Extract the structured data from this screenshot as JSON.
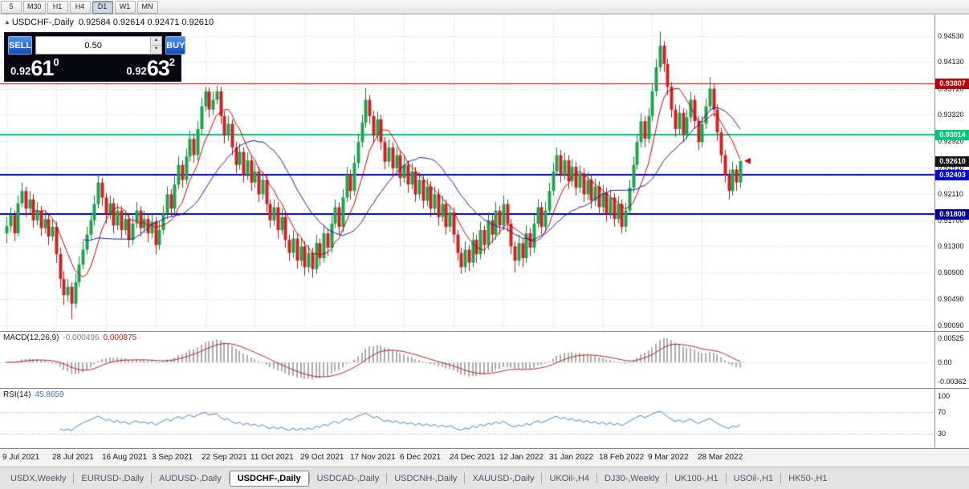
{
  "toolbar": {
    "timeframes": [
      {
        "label": "5",
        "active": false
      },
      {
        "label": "M30",
        "active": false
      },
      {
        "label": "H1",
        "active": false
      },
      {
        "label": "H4",
        "active": false
      },
      {
        "label": "D1",
        "active": true
      },
      {
        "label": "W1",
        "active": false
      },
      {
        "label": "MN",
        "active": false
      }
    ]
  },
  "symbol_line": {
    "symbol": "USDCHF-,Daily",
    "ohlc": "0.92584 0.92614 0.92471 0.92610"
  },
  "trade_panel": {
    "sell_label": "SELL",
    "buy_label": "BUY",
    "volume": "0.50",
    "sell_price": {
      "prefix": "0.92",
      "big": "61",
      "sup": "0"
    },
    "buy_price": {
      "prefix": "0.92",
      "big": "63",
      "sup": "2"
    }
  },
  "price_axis": {
    "ticks": [
      "0.94530",
      "0.94130",
      "0.93720",
      "0.93320",
      "0.92920",
      "0.92510",
      "0.92110",
      "0.91700",
      "0.91300",
      "0.90900",
      "0.90490",
      "0.90090"
    ]
  },
  "levels": [
    {
      "price": 0.93807,
      "label": "0.93807",
      "color": "#b50000",
      "line_width": 1
    },
    {
      "price": 0.93014,
      "label": "0.93014",
      "color": "#00c87a",
      "line_width": 2
    },
    {
      "price": 0.9261,
      "label": "0.92610",
      "color": "#151515",
      "line_width": 0
    },
    {
      "price": 0.92403,
      "label": "0.92403",
      "color": "#0000dc",
      "line_width": 2
    },
    {
      "price": 0.918,
      "label": "0.91800",
      "color": "#000096",
      "line_width": 2
    }
  ],
  "macd_panel": {
    "label": "MACD(12,26,9)",
    "value_main": "-0.000496",
    "value_signal": "0.000875",
    "axis": [
      "0.00525",
      "0.00",
      "-0.00362"
    ]
  },
  "rsi_panel": {
    "label": "RSI(14)",
    "value": "45.8659",
    "axis_values": [
      100,
      70,
      30
    ],
    "guide_levels": [
      70,
      30
    ]
  },
  "date_axis": {
    "labels": [
      "9 Jul 2021",
      "28 Jul 2021",
      "16 Aug 2021",
      "3 Sep 2021",
      "22 Sep 2021",
      "11 Oct 2021",
      "29 Oct 2021",
      "17 Nov 2021",
      "6 Dec 2021",
      "24 Dec 2021",
      "12 Jan 2022",
      "31 Jan 2022",
      "18 Feb 2022",
      "9 Mar 2022",
      "28 Mar 2022"
    ]
  },
  "tabs": {
    "active": "USDCHF-,Daily",
    "items": [
      "USDX,Weekly",
      "EURUSD-,Daily",
      "AUDUSD-,Daily",
      "USDCHF-,Daily",
      "USDCAD-,Daily",
      "USDCNH-,Daily",
      "XAUUSD-,Daily",
      "UKOil-,H4",
      "DJ30-,Weekly",
      "UK100-,H1",
      "USOil-,H1",
      "HK50-,H1"
    ],
    "separator": "|"
  },
  "chart_data": {
    "type": "candlestick",
    "symbol": "USDCHF-",
    "timeframe": "Daily",
    "current_bar": {
      "open": 0.92584,
      "high": 0.92614,
      "low": 0.92471,
      "close": 0.9261
    },
    "bid": 0.9261,
    "ask": 0.92632,
    "y_range": [
      0.9,
      0.9486
    ],
    "bars_start_x": 8,
    "bar_spacing": 4.76,
    "label_every": 13,
    "colors": {
      "up": "#1fa34d",
      "up_border": "#0c7a35",
      "down": "#cc2222",
      "down_border": "#a51818",
      "ma_fast": "#c00000",
      "ma_slow": "#1a1aa0",
      "grid": "#c9c9c9",
      "macd_hist": "#ababab",
      "macd_signal": "#b22222",
      "rsi_line": "#4080c0"
    },
    "overlays": {
      "ma_fast_period": 8,
      "ma_slow_period": 21
    },
    "indicators": [
      {
        "name": "MACD",
        "params": [
          12,
          26,
          9
        ],
        "values": [
          -0.000496,
          0.000875
        ]
      },
      {
        "name": "RSI",
        "params": [
          14
        ],
        "value": 45.8659
      }
    ],
    "candles": [
      [
        0.915,
        0.9175,
        0.9135,
        0.9161
      ],
      [
        0.9161,
        0.919,
        0.9152,
        0.9178
      ],
      [
        0.9178,
        0.9185,
        0.9138,
        0.915
      ],
      [
        0.915,
        0.9208,
        0.9145,
        0.9196
      ],
      [
        0.9196,
        0.9228,
        0.919,
        0.9215
      ],
      [
        0.9215,
        0.9222,
        0.9175,
        0.9188
      ],
      [
        0.9188,
        0.9215,
        0.918,
        0.9202
      ],
      [
        0.9202,
        0.921,
        0.9158,
        0.917
      ],
      [
        0.917,
        0.9198,
        0.9162,
        0.9185
      ],
      [
        0.9185,
        0.9192,
        0.9146,
        0.9158
      ],
      [
        0.9158,
        0.9184,
        0.915,
        0.9172
      ],
      [
        0.9172,
        0.918,
        0.9132,
        0.9145
      ],
      [
        0.9145,
        0.9172,
        0.9138,
        0.916
      ],
      [
        0.916,
        0.9168,
        0.9105,
        0.9118
      ],
      [
        0.9118,
        0.9128,
        0.9066,
        0.908
      ],
      [
        0.908,
        0.9092,
        0.904,
        0.9055
      ],
      [
        0.9055,
        0.908,
        0.9045,
        0.9068
      ],
      [
        0.9068,
        0.9075,
        0.9018,
        0.9042
      ],
      [
        0.9042,
        0.9088,
        0.9035,
        0.9075
      ],
      [
        0.9075,
        0.9115,
        0.9068,
        0.9102
      ],
      [
        0.9102,
        0.9138,
        0.9095,
        0.9125
      ],
      [
        0.9125,
        0.916,
        0.9118,
        0.9148
      ],
      [
        0.9148,
        0.9182,
        0.914,
        0.917
      ],
      [
        0.917,
        0.9208,
        0.9162,
        0.9195
      ],
      [
        0.9195,
        0.924,
        0.9188,
        0.9228
      ],
      [
        0.9228,
        0.9235,
        0.9192,
        0.9205
      ],
      [
        0.9205,
        0.9212,
        0.9165,
        0.918
      ],
      [
        0.918,
        0.9208,
        0.9172,
        0.9196
      ],
      [
        0.9196,
        0.9204,
        0.915,
        0.9162
      ],
      [
        0.9162,
        0.9196,
        0.9155,
        0.9185
      ],
      [
        0.9185,
        0.9192,
        0.9142,
        0.9155
      ],
      [
        0.9155,
        0.9184,
        0.9148,
        0.9172
      ],
      [
        0.9172,
        0.918,
        0.9128,
        0.914
      ],
      [
        0.914,
        0.9177,
        0.9132,
        0.9165
      ],
      [
        0.9165,
        0.9198,
        0.9158,
        0.9185
      ],
      [
        0.9185,
        0.9192,
        0.9145,
        0.9158
      ],
      [
        0.9158,
        0.9185,
        0.915,
        0.9172
      ],
      [
        0.9172,
        0.918,
        0.9136,
        0.915
      ],
      [
        0.915,
        0.918,
        0.9142,
        0.9168
      ],
      [
        0.9168,
        0.9175,
        0.9118,
        0.9132
      ],
      [
        0.9132,
        0.9168,
        0.9125,
        0.9155
      ],
      [
        0.9155,
        0.9192,
        0.9148,
        0.918
      ],
      [
        0.918,
        0.9222,
        0.9172,
        0.921
      ],
      [
        0.921,
        0.9218,
        0.9175,
        0.9188
      ],
      [
        0.9188,
        0.9238,
        0.918,
        0.9225
      ],
      [
        0.9225,
        0.9268,
        0.9218,
        0.9255
      ],
      [
        0.9255,
        0.9262,
        0.922,
        0.9232
      ],
      [
        0.9232,
        0.928,
        0.9225,
        0.9268
      ],
      [
        0.9268,
        0.9308,
        0.926,
        0.9295
      ],
      [
        0.9295,
        0.9302,
        0.9258,
        0.927
      ],
      [
        0.927,
        0.9322,
        0.9262,
        0.931
      ],
      [
        0.931,
        0.9358,
        0.9302,
        0.9345
      ],
      [
        0.9345,
        0.9375,
        0.9338,
        0.9368
      ],
      [
        0.9368,
        0.9374,
        0.9328,
        0.934
      ],
      [
        0.934,
        0.9368,
        0.9332,
        0.9355
      ],
      [
        0.9355,
        0.9377,
        0.9348,
        0.9368
      ],
      [
        0.9368,
        0.9375,
        0.9318,
        0.933
      ],
      [
        0.933,
        0.9338,
        0.9288,
        0.93
      ],
      [
        0.93,
        0.933,
        0.9292,
        0.9318
      ],
      [
        0.9318,
        0.9325,
        0.927,
        0.9282
      ],
      [
        0.9282,
        0.929,
        0.9242,
        0.9255
      ],
      [
        0.9255,
        0.9288,
        0.9248,
        0.9275
      ],
      [
        0.9275,
        0.9282,
        0.9228,
        0.924
      ],
      [
        0.924,
        0.9274,
        0.9232,
        0.9262
      ],
      [
        0.9262,
        0.927,
        0.9215,
        0.9228
      ],
      [
        0.9228,
        0.9258,
        0.922,
        0.9245
      ],
      [
        0.9245,
        0.9252,
        0.9198,
        0.921
      ],
      [
        0.921,
        0.9245,
        0.9202,
        0.9232
      ],
      [
        0.9232,
        0.924,
        0.9182,
        0.9195
      ],
      [
        0.9195,
        0.9202,
        0.9158,
        0.917
      ],
      [
        0.917,
        0.9202,
        0.9162,
        0.919
      ],
      [
        0.919,
        0.9198,
        0.9142,
        0.9155
      ],
      [
        0.9155,
        0.9188,
        0.9148,
        0.9175
      ],
      [
        0.9175,
        0.9182,
        0.9128,
        0.914
      ],
      [
        0.914,
        0.9148,
        0.9108,
        0.912
      ],
      [
        0.912,
        0.9155,
        0.9112,
        0.9142
      ],
      [
        0.9142,
        0.915,
        0.9096,
        0.9108
      ],
      [
        0.9108,
        0.9142,
        0.91,
        0.913
      ],
      [
        0.913,
        0.9138,
        0.9085,
        0.9098
      ],
      [
        0.9098,
        0.9132,
        0.909,
        0.912
      ],
      [
        0.912,
        0.9128,
        0.9082,
        0.9095
      ],
      [
        0.9095,
        0.9148,
        0.9088,
        0.9135
      ],
      [
        0.9135,
        0.9142,
        0.91,
        0.9112
      ],
      [
        0.9112,
        0.9162,
        0.9105,
        0.915
      ],
      [
        0.915,
        0.9158,
        0.9115,
        0.9128
      ],
      [
        0.9128,
        0.9178,
        0.912,
        0.9165
      ],
      [
        0.9165,
        0.9202,
        0.9158,
        0.919
      ],
      [
        0.919,
        0.9198,
        0.9148,
        0.916
      ],
      [
        0.916,
        0.9218,
        0.9152,
        0.9205
      ],
      [
        0.9205,
        0.9252,
        0.9198,
        0.924
      ],
      [
        0.924,
        0.9248,
        0.9202,
        0.9215
      ],
      [
        0.9215,
        0.927,
        0.9208,
        0.9258
      ],
      [
        0.9258,
        0.9302,
        0.925,
        0.929
      ],
      [
        0.929,
        0.9332,
        0.9282,
        0.932
      ],
      [
        0.932,
        0.9373,
        0.9312,
        0.9355
      ],
      [
        0.9355,
        0.9362,
        0.9318,
        0.933
      ],
      [
        0.933,
        0.9338,
        0.9288,
        0.93
      ],
      [
        0.93,
        0.9337,
        0.9292,
        0.9325
      ],
      [
        0.9325,
        0.9332,
        0.9278,
        0.929
      ],
      [
        0.929,
        0.9298,
        0.9248,
        0.926
      ],
      [
        0.926,
        0.9294,
        0.9252,
        0.9282
      ],
      [
        0.9282,
        0.929,
        0.9238,
        0.925
      ],
      [
        0.925,
        0.9282,
        0.9242,
        0.927
      ],
      [
        0.927,
        0.9278,
        0.9222,
        0.9235
      ],
      [
        0.9235,
        0.9268,
        0.9228,
        0.9255
      ],
      [
        0.9255,
        0.9262,
        0.9212,
        0.9225
      ],
      [
        0.9225,
        0.9258,
        0.9218,
        0.9245
      ],
      [
        0.9245,
        0.9252,
        0.9198,
        0.921
      ],
      [
        0.921,
        0.9244,
        0.9202,
        0.9232
      ],
      [
        0.9232,
        0.924,
        0.9188,
        0.92
      ],
      [
        0.92,
        0.9234,
        0.9192,
        0.9222
      ],
      [
        0.9222,
        0.923,
        0.9175,
        0.9188
      ],
      [
        0.9188,
        0.9222,
        0.918,
        0.921
      ],
      [
        0.921,
        0.9218,
        0.9162,
        0.9175
      ],
      [
        0.9175,
        0.9208,
        0.9168,
        0.9195
      ],
      [
        0.9195,
        0.9202,
        0.9148,
        0.916
      ],
      [
        0.916,
        0.9194,
        0.9152,
        0.9182
      ],
      [
        0.9182,
        0.919,
        0.9135,
        0.9148
      ],
      [
        0.9148,
        0.9155,
        0.9108,
        0.912
      ],
      [
        0.912,
        0.9128,
        0.9088,
        0.9098
      ],
      [
        0.9098,
        0.9138,
        0.909,
        0.9125
      ],
      [
        0.9125,
        0.9132,
        0.9092,
        0.9105
      ],
      [
        0.9105,
        0.9152,
        0.9098,
        0.914
      ],
      [
        0.914,
        0.9148,
        0.9105,
        0.9118
      ],
      [
        0.9118,
        0.9168,
        0.911,
        0.9155
      ],
      [
        0.9155,
        0.9162,
        0.9118,
        0.9132
      ],
      [
        0.9132,
        0.9182,
        0.9125,
        0.917
      ],
      [
        0.917,
        0.9178,
        0.9135,
        0.9148
      ],
      [
        0.9148,
        0.9198,
        0.914,
        0.9185
      ],
      [
        0.9185,
        0.9192,
        0.9148,
        0.9162
      ],
      [
        0.9162,
        0.9208,
        0.9155,
        0.9195
      ],
      [
        0.9195,
        0.9202,
        0.9152,
        0.9165
      ],
      [
        0.9165,
        0.9172,
        0.9118,
        0.913
      ],
      [
        0.913,
        0.9138,
        0.909,
        0.9108
      ],
      [
        0.9108,
        0.9148,
        0.91,
        0.9135
      ],
      [
        0.9135,
        0.9142,
        0.9098,
        0.9112
      ],
      [
        0.9112,
        0.9162,
        0.9105,
        0.915
      ],
      [
        0.915,
        0.9158,
        0.9115,
        0.9128
      ],
      [
        0.9128,
        0.9178,
        0.912,
        0.9165
      ],
      [
        0.9165,
        0.9202,
        0.9158,
        0.919
      ],
      [
        0.919,
        0.9198,
        0.9148,
        0.916
      ],
      [
        0.916,
        0.9198,
        0.9152,
        0.9185
      ],
      [
        0.9185,
        0.9228,
        0.9178,
        0.9215
      ],
      [
        0.9215,
        0.9258,
        0.9208,
        0.9245
      ],
      [
        0.9245,
        0.9282,
        0.9238,
        0.927
      ],
      [
        0.927,
        0.9278,
        0.9228,
        0.924
      ],
      [
        0.924,
        0.9274,
        0.9232,
        0.9262
      ],
      [
        0.9262,
        0.927,
        0.9218,
        0.923
      ],
      [
        0.923,
        0.9264,
        0.9222,
        0.9252
      ],
      [
        0.9252,
        0.926,
        0.9208,
        0.922
      ],
      [
        0.922,
        0.9254,
        0.9212,
        0.9242
      ],
      [
        0.9242,
        0.925,
        0.9198,
        0.921
      ],
      [
        0.921,
        0.9244,
        0.9202,
        0.9232
      ],
      [
        0.9232,
        0.924,
        0.9188,
        0.92
      ],
      [
        0.92,
        0.9234,
        0.9192,
        0.9222
      ],
      [
        0.9222,
        0.923,
        0.9178,
        0.919
      ],
      [
        0.919,
        0.9224,
        0.9182,
        0.9212
      ],
      [
        0.9212,
        0.922,
        0.9168,
        0.918
      ],
      [
        0.918,
        0.9217,
        0.9172,
        0.9205
      ],
      [
        0.9205,
        0.9212,
        0.916,
        0.9172
      ],
      [
        0.9172,
        0.9207,
        0.9165,
        0.9195
      ],
      [
        0.9195,
        0.9202,
        0.915,
        0.916
      ],
      [
        0.916,
        0.9197,
        0.9152,
        0.9185
      ],
      [
        0.9185,
        0.9232,
        0.9178,
        0.922
      ],
      [
        0.922,
        0.9268,
        0.9212,
        0.9255
      ],
      [
        0.9255,
        0.9302,
        0.9248,
        0.929
      ],
      [
        0.929,
        0.9334,
        0.9282,
        0.9322
      ],
      [
        0.9322,
        0.933,
        0.9282,
        0.9295
      ],
      [
        0.9295,
        0.9342,
        0.9288,
        0.933
      ],
      [
        0.933,
        0.938,
        0.9322,
        0.9368
      ],
      [
        0.9368,
        0.9418,
        0.936,
        0.9405
      ],
      [
        0.9405,
        0.946,
        0.9398,
        0.9438
      ],
      [
        0.9438,
        0.9445,
        0.9398,
        0.941
      ],
      [
        0.941,
        0.9418,
        0.9362,
        0.9375
      ],
      [
        0.9375,
        0.9382,
        0.9328,
        0.934
      ],
      [
        0.934,
        0.9348,
        0.9298,
        0.931
      ],
      [
        0.931,
        0.9347,
        0.9302,
        0.9335
      ],
      [
        0.9335,
        0.9342,
        0.929,
        0.9302
      ],
      [
        0.9302,
        0.934,
        0.9295,
        0.9328
      ],
      [
        0.9328,
        0.9367,
        0.932,
        0.9355
      ],
      [
        0.9355,
        0.9362,
        0.931,
        0.9322
      ],
      [
        0.9322,
        0.933,
        0.9278,
        0.929
      ],
      [
        0.929,
        0.933,
        0.9282,
        0.9318
      ],
      [
        0.9318,
        0.9357,
        0.931,
        0.9345
      ],
      [
        0.9345,
        0.939,
        0.9338,
        0.9372
      ],
      [
        0.9372,
        0.938,
        0.9328,
        0.934
      ],
      [
        0.934,
        0.9348,
        0.9292,
        0.9305
      ],
      [
        0.9305,
        0.9312,
        0.9258,
        0.927
      ],
      [
        0.927,
        0.9278,
        0.9228,
        0.924
      ],
      [
        0.924,
        0.9248,
        0.9202,
        0.9215
      ],
      [
        0.9215,
        0.926,
        0.9208,
        0.9248
      ],
      [
        0.9248,
        0.9255,
        0.9215,
        0.9228
      ],
      [
        0.9228,
        0.9262,
        0.922,
        0.9261
      ]
    ]
  }
}
